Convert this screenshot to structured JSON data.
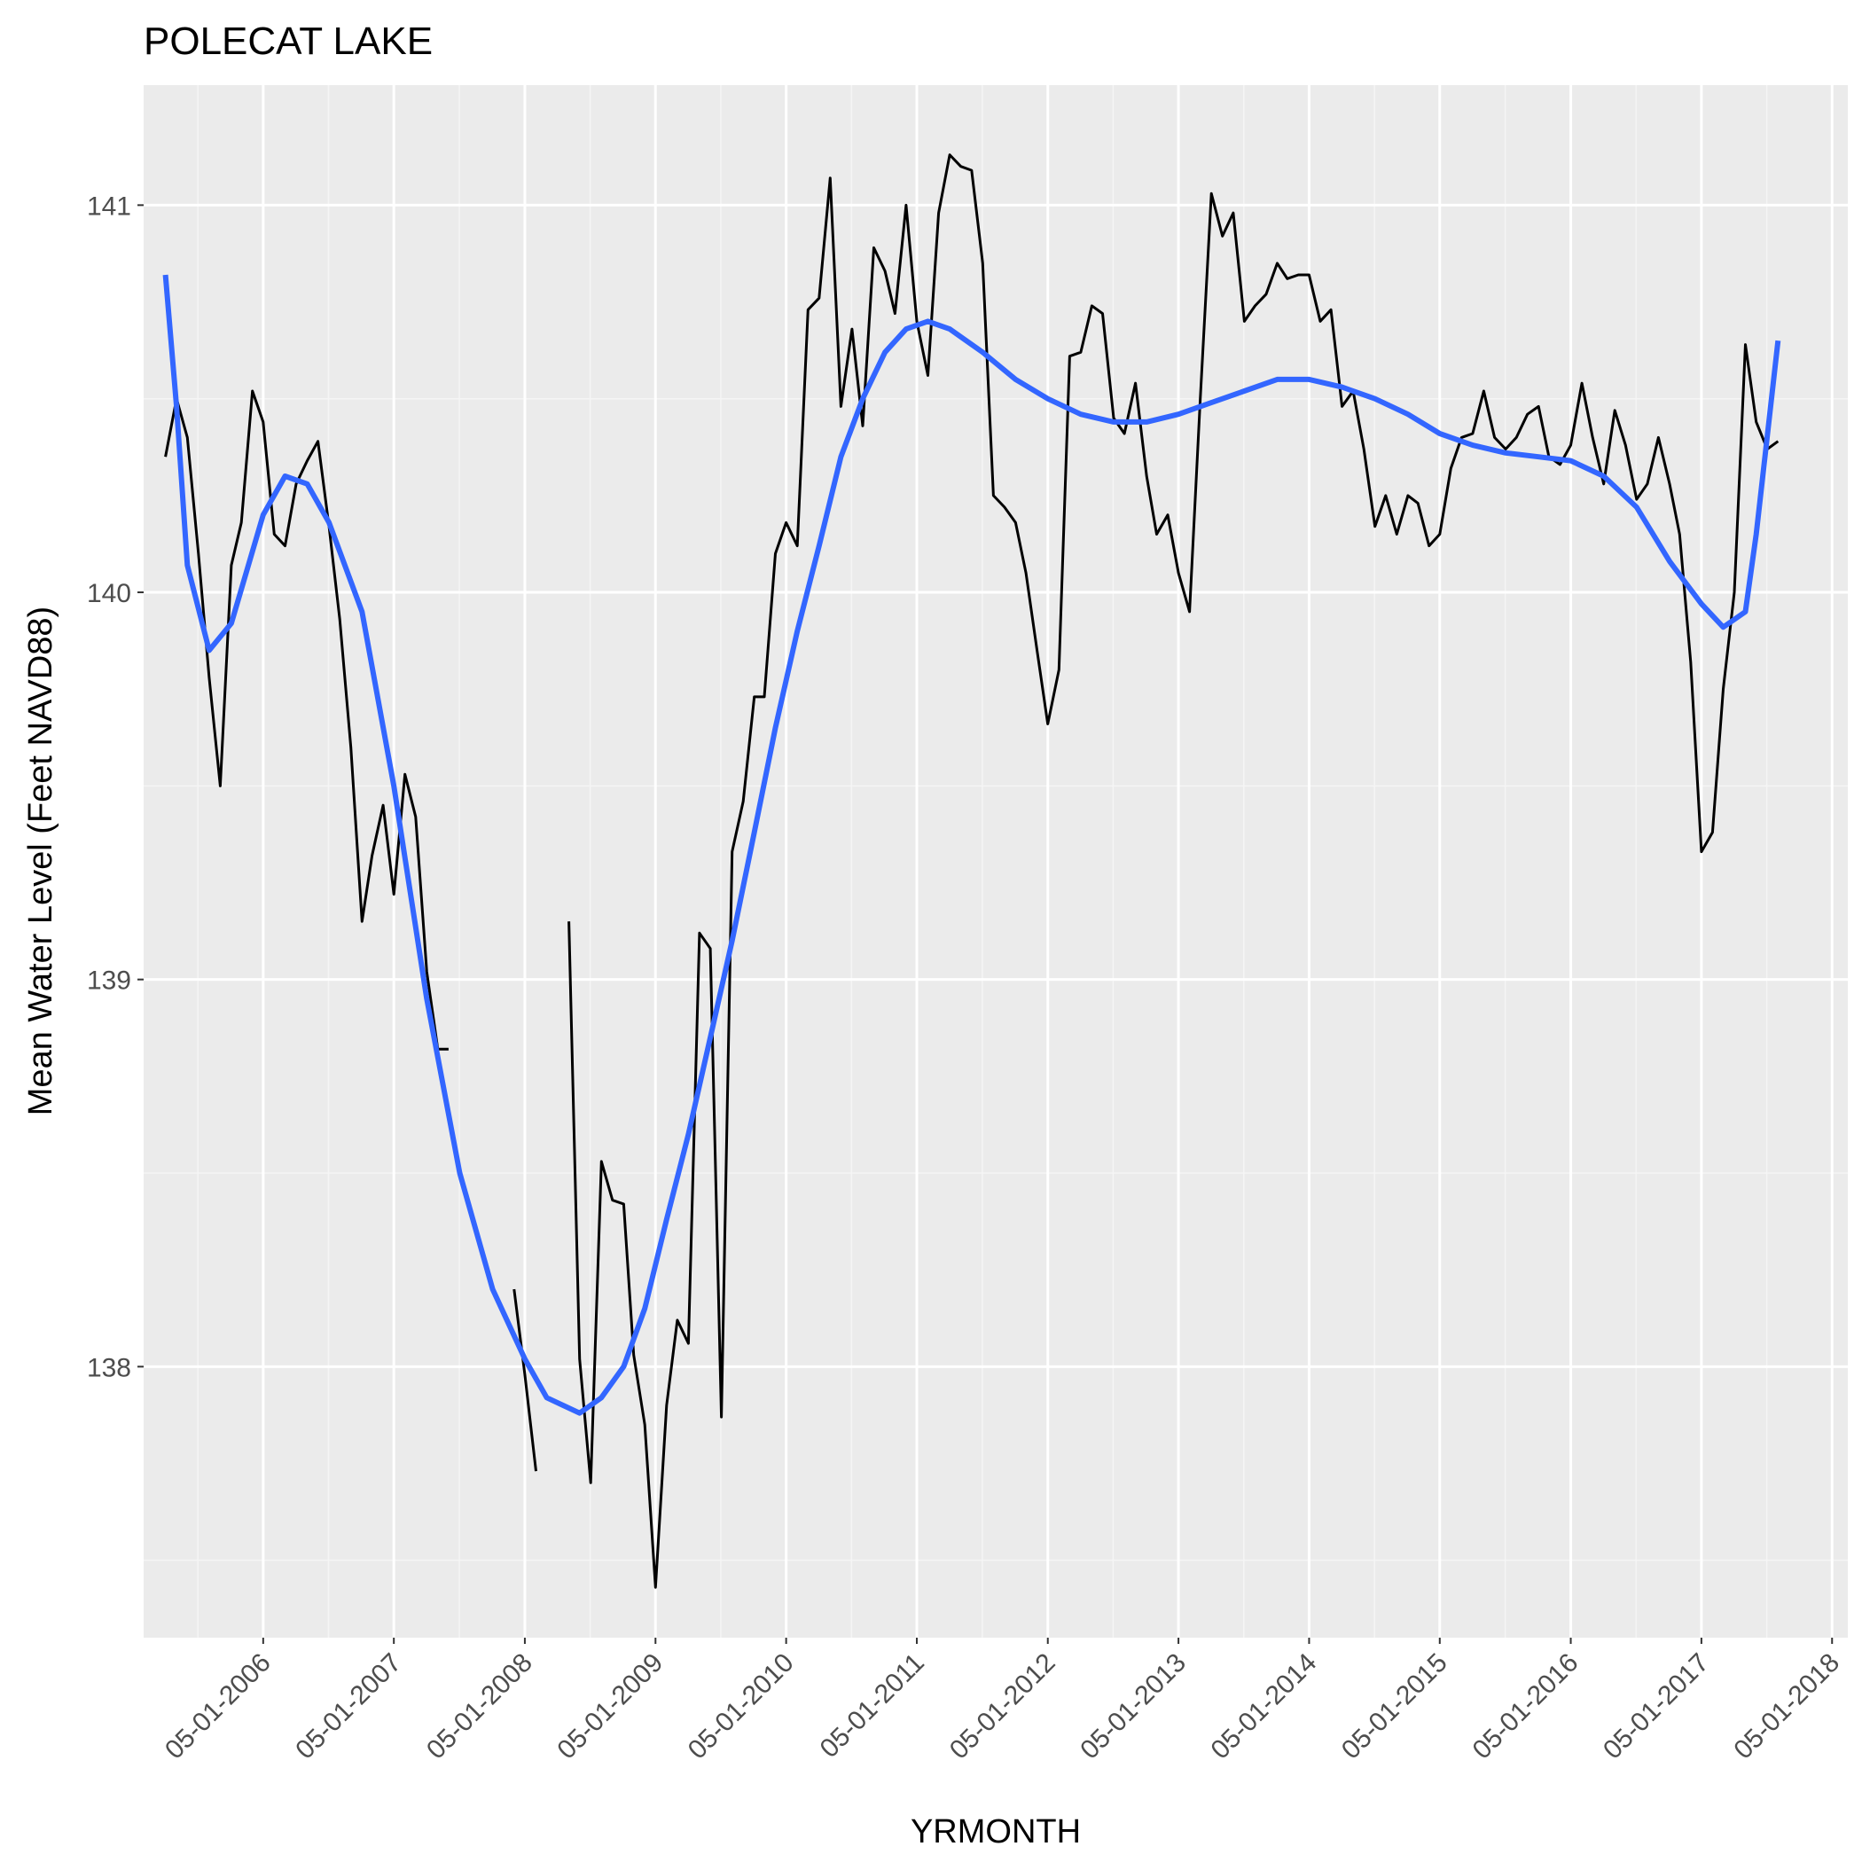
{
  "chart_data": {
    "type": "line",
    "title": "POLECAT LAKE",
    "xlabel": "YRMONTH",
    "ylabel": "Mean Water Level (Feet NAVD88)",
    "x_ticks": [
      "05-01-2006",
      "05-01-2007",
      "05-01-2008",
      "05-01-2009",
      "05-01-2010",
      "05-01-2011",
      "05-01-2012",
      "05-01-2013",
      "05-01-2014",
      "05-01-2015",
      "05-01-2016",
      "05-01-2017",
      "05-01-2018"
    ],
    "y_ticks": [
      138,
      139,
      140,
      141
    ],
    "xlim": [
      "2005-06-01",
      "2018-06-14"
    ],
    "ylim": [
      137.3,
      141.31
    ],
    "grid": true,
    "colors": {
      "panel_bg": "#EBEBEB",
      "grid_major": "#FFFFFF",
      "grid_minor": "#F5F5F5",
      "raw": "#000000",
      "smooth": "#3366FF",
      "tick_text": "#4D4D4D",
      "tick_mark": "#333333"
    },
    "series": [
      {
        "segments": [
          [
            [
              "2005-08-01",
              140.35
            ],
            [
              "2005-09-01",
              140.5
            ],
            [
              "2005-10-01",
              140.4
            ],
            [
              "2005-11-01",
              140.1
            ],
            [
              "2005-12-01",
              139.78
            ],
            [
              "2006-01-01",
              139.5
            ],
            [
              "2006-02-01",
              140.07
            ],
            [
              "2006-03-01",
              140.18
            ],
            [
              "2006-04-01",
              140.52
            ],
            [
              "2006-05-01",
              140.44
            ],
            [
              "2006-06-01",
              140.15
            ],
            [
              "2006-07-01",
              140.12
            ],
            [
              "2006-08-01",
              140.28
            ],
            [
              "2006-09-01",
              140.34
            ],
            [
              "2006-10-01",
              140.39
            ],
            [
              "2006-11-01",
              140.17
            ],
            [
              "2006-12-01",
              139.93
            ],
            [
              "2007-01-01",
              139.6
            ],
            [
              "2007-02-01",
              139.15
            ],
            [
              "2007-03-01",
              139.32
            ],
            [
              "2007-04-01",
              139.45
            ],
            [
              "2007-05-01",
              139.22
            ],
            [
              "2007-06-01",
              139.53
            ],
            [
              "2007-07-01",
              139.42
            ],
            [
              "2007-08-01",
              139.02
            ],
            [
              "2007-09-01",
              138.82
            ],
            [
              "2007-10-01",
              138.82
            ]
          ],
          [
            [
              "2008-04-01",
              138.2
            ],
            [
              "2008-05-01",
              137.98
            ],
            [
              "2008-06-01",
              137.73
            ]
          ],
          [
            [
              "2008-09-01",
              139.15
            ],
            [
              "2008-10-01",
              138.02
            ],
            [
              "2008-11-01",
              137.7
            ],
            [
              "2008-12-01",
              138.53
            ],
            [
              "2009-01-01",
              138.43
            ],
            [
              "2009-02-01",
              138.42
            ],
            [
              "2009-03-01",
              138.03
            ],
            [
              "2009-04-01",
              137.85
            ],
            [
              "2009-05-01",
              137.43
            ],
            [
              "2009-06-01",
              137.9
            ],
            [
              "2009-07-01",
              138.12
            ],
            [
              "2009-08-01",
              138.06
            ],
            [
              "2009-09-01",
              139.12
            ],
            [
              "2009-10-01",
              139.08
            ],
            [
              "2009-11-01",
              137.87
            ],
            [
              "2009-12-01",
              139.33
            ],
            [
              "2010-01-01",
              139.46
            ],
            [
              "2010-02-01",
              139.73
            ],
            [
              "2010-03-01",
              139.73
            ],
            [
              "2010-04-01",
              140.1
            ],
            [
              "2010-05-01",
              140.18
            ],
            [
              "2010-06-01",
              140.12
            ],
            [
              "2010-07-01",
              140.73
            ],
            [
              "2010-08-01",
              140.76
            ],
            [
              "2010-09-01",
              141.07
            ],
            [
              "2010-10-01",
              140.48
            ],
            [
              "2010-11-01",
              140.68
            ],
            [
              "2010-12-01",
              140.43
            ],
            [
              "2011-01-01",
              140.89
            ],
            [
              "2011-02-01",
              140.83
            ],
            [
              "2011-03-01",
              140.72
            ],
            [
              "2011-04-01",
              141.0
            ],
            [
              "2011-05-01",
              140.7
            ],
            [
              "2011-06-01",
              140.56
            ],
            [
              "2011-07-01",
              140.98
            ],
            [
              "2011-08-01",
              141.13
            ],
            [
              "2011-09-01",
              141.1
            ],
            [
              "2011-10-01",
              141.09
            ],
            [
              "2011-11-01",
              140.85
            ],
            [
              "2011-12-01",
              140.25
            ],
            [
              "2012-01-01",
              140.22
            ],
            [
              "2012-02-01",
              140.18
            ],
            [
              "2012-03-01",
              140.05
            ],
            [
              "2012-04-01",
              139.85
            ],
            [
              "2012-05-01",
              139.66
            ],
            [
              "2012-06-01",
              139.8
            ],
            [
              "2012-07-01",
              140.61
            ],
            [
              "2012-08-01",
              140.62
            ],
            [
              "2012-09-01",
              140.74
            ],
            [
              "2012-10-01",
              140.72
            ],
            [
              "2012-11-01",
              140.45
            ],
            [
              "2012-12-01",
              140.41
            ],
            [
              "2013-01-01",
              140.54
            ],
            [
              "2013-02-01",
              140.3
            ],
            [
              "2013-03-01",
              140.15
            ],
            [
              "2013-04-01",
              140.2
            ],
            [
              "2013-05-01",
              140.05
            ],
            [
              "2013-06-01",
              139.95
            ],
            [
              "2013-07-01",
              140.5
            ],
            [
              "2013-08-01",
              141.03
            ],
            [
              "2013-09-01",
              140.92
            ],
            [
              "2013-10-01",
              140.98
            ],
            [
              "2013-11-01",
              140.7
            ],
            [
              "2013-12-01",
              140.74
            ],
            [
              "2014-01-01",
              140.77
            ],
            [
              "2014-02-01",
              140.85
            ],
            [
              "2014-03-01",
              140.81
            ],
            [
              "2014-04-01",
              140.82
            ],
            [
              "2014-05-01",
              140.82
            ],
            [
              "2014-06-01",
              140.7
            ],
            [
              "2014-07-01",
              140.73
            ],
            [
              "2014-08-01",
              140.48
            ],
            [
              "2014-09-01",
              140.52
            ],
            [
              "2014-10-01",
              140.37
            ],
            [
              "2014-11-01",
              140.17
            ],
            [
              "2014-12-01",
              140.25
            ],
            [
              "2015-01-01",
              140.15
            ],
            [
              "2015-02-01",
              140.25
            ],
            [
              "2015-03-01",
              140.23
            ],
            [
              "2015-04-01",
              140.12
            ],
            [
              "2015-05-01",
              140.15
            ],
            [
              "2015-06-01",
              140.32
            ],
            [
              "2015-07-01",
              140.4
            ],
            [
              "2015-08-01",
              140.41
            ],
            [
              "2015-09-01",
              140.52
            ],
            [
              "2015-10-01",
              140.4
            ],
            [
              "2015-11-01",
              140.37
            ],
            [
              "2015-12-01",
              140.4
            ],
            [
              "2016-01-01",
              140.46
            ],
            [
              "2016-02-01",
              140.48
            ],
            [
              "2016-03-01",
              140.35
            ],
            [
              "2016-04-01",
              140.33
            ],
            [
              "2016-05-01",
              140.38
            ],
            [
              "2016-06-01",
              140.54
            ],
            [
              "2016-07-01",
              140.4
            ],
            [
              "2016-08-01",
              140.28
            ],
            [
              "2016-09-01",
              140.47
            ],
            [
              "2016-10-01",
              140.38
            ],
            [
              "2016-11-01",
              140.24
            ],
            [
              "2016-12-01",
              140.28
            ],
            [
              "2017-01-01",
              140.4
            ],
            [
              "2017-02-01",
              140.28
            ],
            [
              "2017-03-01",
              140.15
            ],
            [
              "2017-04-01",
              139.82
            ],
            [
              "2017-05-01",
              139.33
            ],
            [
              "2017-06-01",
              139.38
            ],
            [
              "2017-07-01",
              139.75
            ],
            [
              "2017-08-01",
              140.0
            ],
            [
              "2017-09-01",
              140.64
            ],
            [
              "2017-10-01",
              140.44
            ],
            [
              "2017-11-01",
              140.37
            ],
            [
              "2017-12-01",
              140.39
            ]
          ]
        ]
      },
      {
        "name": "smooth",
        "points": [
          [
            "2005-08-01",
            140.82
          ],
          [
            "2005-09-01",
            140.48
          ],
          [
            "2005-10-01",
            140.07
          ],
          [
            "2005-12-01",
            139.85
          ],
          [
            "2006-02-01",
            139.92
          ],
          [
            "2006-05-01",
            140.2
          ],
          [
            "2006-07-01",
            140.3
          ],
          [
            "2006-09-01",
            140.28
          ],
          [
            "2006-11-01",
            140.18
          ],
          [
            "2007-02-01",
            139.95
          ],
          [
            "2007-05-01",
            139.5
          ],
          [
            "2007-08-01",
            138.95
          ],
          [
            "2007-11-01",
            138.5
          ],
          [
            "2008-02-01",
            138.2
          ],
          [
            "2008-05-01",
            138.02
          ],
          [
            "2008-07-01",
            137.92
          ],
          [
            "2008-10-01",
            137.88
          ],
          [
            "2008-12-01",
            137.92
          ],
          [
            "2009-02-01",
            138.0
          ],
          [
            "2009-04-01",
            138.15
          ],
          [
            "2009-06-01",
            138.38
          ],
          [
            "2009-08-01",
            138.6
          ],
          [
            "2009-10-01",
            138.85
          ],
          [
            "2009-12-01",
            139.1
          ],
          [
            "2010-02-01",
            139.38
          ],
          [
            "2010-04-01",
            139.65
          ],
          [
            "2010-06-01",
            139.9
          ],
          [
            "2010-08-01",
            140.12
          ],
          [
            "2010-10-01",
            140.35
          ],
          [
            "2010-12-01",
            140.5
          ],
          [
            "2011-02-01",
            140.62
          ],
          [
            "2011-04-01",
            140.68
          ],
          [
            "2011-06-01",
            140.7
          ],
          [
            "2011-08-01",
            140.68
          ],
          [
            "2011-11-01",
            140.62
          ],
          [
            "2012-02-01",
            140.55
          ],
          [
            "2012-05-01",
            140.5
          ],
          [
            "2012-08-01",
            140.46
          ],
          [
            "2012-11-01",
            140.44
          ],
          [
            "2013-02-01",
            140.44
          ],
          [
            "2013-05-01",
            140.46
          ],
          [
            "2013-08-01",
            140.49
          ],
          [
            "2013-11-01",
            140.52
          ],
          [
            "2014-02-01",
            140.55
          ],
          [
            "2014-05-01",
            140.55
          ],
          [
            "2014-08-01",
            140.53
          ],
          [
            "2014-11-01",
            140.5
          ],
          [
            "2015-02-01",
            140.46
          ],
          [
            "2015-05-01",
            140.41
          ],
          [
            "2015-08-01",
            140.38
          ],
          [
            "2015-11-01",
            140.36
          ],
          [
            "2016-02-01",
            140.35
          ],
          [
            "2016-05-01",
            140.34
          ],
          [
            "2016-08-01",
            140.3
          ],
          [
            "2016-11-01",
            140.22
          ],
          [
            "2017-02-01",
            140.08
          ],
          [
            "2017-05-01",
            139.97
          ],
          [
            "2017-07-01",
            139.91
          ],
          [
            "2017-09-01",
            139.95
          ],
          [
            "2017-10-01",
            140.15
          ],
          [
            "2017-12-01",
            140.65
          ]
        ]
      }
    ]
  }
}
